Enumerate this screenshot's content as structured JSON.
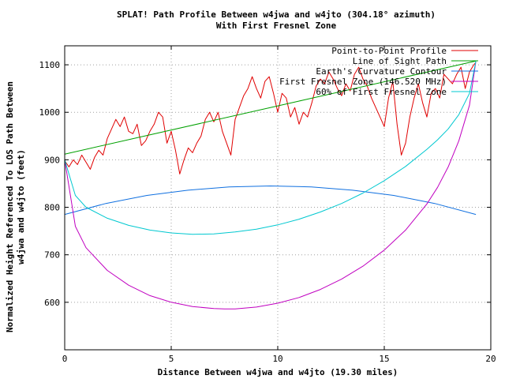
{
  "chart_data": {
    "type": "line",
    "title": "SPLAT! Path Profile Between w4jwa and w4jto (304.18° azimuth)",
    "subtitle": "With First Fresnel Zone",
    "xlabel": "Distance Between w4jwa and w4jto (19.30 miles)",
    "ylabel_line1": "Normalized Height Referenced To LOS Path Between",
    "ylabel_line2": "w4jwa and w4jto (feet)",
    "xlim": [
      0,
      20
    ],
    "ylim": [
      500,
      1140
    ],
    "xticks": [
      "0",
      "5",
      "10",
      "15",
      "20"
    ],
    "yticks": [
      "600",
      "700",
      "800",
      "900",
      "1000",
      "1100"
    ],
    "grid": true,
    "legend_position": "top-right",
    "path_length_miles": 19.3,
    "series": [
      {
        "name": "Point-to-Point Profile",
        "color": "#e00000",
        "x": [
          0,
          0.2,
          0.4,
          0.6,
          0.8,
          1.0,
          1.2,
          1.4,
          1.6,
          1.8,
          2.0,
          2.2,
          2.4,
          2.6,
          2.8,
          3.0,
          3.2,
          3.4,
          3.6,
          3.8,
          4.0,
          4.2,
          4.4,
          4.6,
          4.8,
          5.0,
          5.2,
          5.4,
          5.6,
          5.8,
          6.0,
          6.2,
          6.4,
          6.6,
          6.8,
          7.0,
          7.2,
          7.4,
          7.6,
          7.8,
          8.0,
          8.2,
          8.4,
          8.6,
          8.8,
          9.0,
          9.2,
          9.4,
          9.6,
          9.8,
          10.0,
          10.2,
          10.4,
          10.6,
          10.8,
          11.0,
          11.2,
          11.4,
          11.6,
          11.8,
          12.0,
          12.2,
          12.4,
          12.6,
          12.8,
          13.0,
          13.2,
          13.4,
          13.6,
          13.8,
          14.0,
          14.2,
          14.4,
          14.6,
          14.8,
          15.0,
          15.2,
          15.4,
          15.6,
          15.8,
          16.0,
          16.2,
          16.4,
          16.6,
          16.8,
          17.0,
          17.2,
          17.4,
          17.6,
          17.8,
          18.0,
          18.2,
          18.4,
          18.6,
          18.8,
          19.0,
          19.2,
          19.3
        ],
        "values": [
          898,
          885,
          900,
          890,
          910,
          895,
          880,
          905,
          920,
          910,
          945,
          965,
          985,
          970,
          990,
          960,
          955,
          975,
          930,
          940,
          960,
          975,
          1000,
          990,
          935,
          960,
          920,
          870,
          900,
          925,
          915,
          935,
          950,
          985,
          1000,
          980,
          1000,
          960,
          935,
          910,
          985,
          1010,
          1035,
          1050,
          1075,
          1050,
          1030,
          1065,
          1075,
          1040,
          1000,
          1040,
          1030,
          990,
          1010,
          975,
          1000,
          990,
          1020,
          1055,
          1070,
          1060,
          1085,
          1070,
          1050,
          1035,
          1060,
          1045,
          1080,
          1095,
          1070,
          1055,
          1030,
          1010,
          990,
          970,
          1030,
          1065,
          975,
          910,
          935,
          990,
          1030,
          1060,
          1020,
          990,
          1040,
          1050,
          1030,
          1080,
          1070,
          1060,
          1080,
          1095,
          1050,
          1085,
          1100,
          1105
        ]
      },
      {
        "name": "Line of Sight Path",
        "color": "#00a000",
        "x": [
          0,
          19.3
        ],
        "values": [
          912,
          1108
        ]
      },
      {
        "name": "Earth's Curvature Contour",
        "color": "#1070e0",
        "x": [
          0,
          1.93,
          3.86,
          5.79,
          7.72,
          9.65,
          11.58,
          13.51,
          15.44,
          17.37,
          19.3
        ],
        "values": [
          785,
          808,
          825,
          836,
          843,
          845,
          843,
          836,
          825,
          808,
          785
        ]
      },
      {
        "name": "First Fresnel Zone (146.520 MHz)",
        "color": "#c000c0",
        "x": [
          0,
          0.5,
          1.0,
          2.0,
          3.0,
          4.0,
          5.0,
          6.0,
          7.0,
          7.5,
          8.0,
          9.0,
          10.0,
          11.0,
          12.0,
          13.0,
          14.0,
          15.0,
          16.0,
          17.0,
          17.5,
          18.0,
          18.5,
          19.0,
          19.3
        ],
        "values": [
          900,
          760,
          715,
          667,
          636,
          614,
          600,
          591,
          587,
          586,
          586,
          590,
          598,
          610,
          627,
          649,
          676,
          710,
          752,
          807,
          842,
          885,
          940,
          1015,
          1108
        ]
      },
      {
        "name": "60% of First Fresnel Zone",
        "color": "#00c8d0",
        "x": [
          0,
          0.5,
          1.0,
          2.0,
          3.0,
          4.0,
          5.0,
          6.0,
          7.0,
          8.0,
          9.0,
          10.0,
          11.0,
          12.0,
          13.0,
          14.0,
          15.0,
          16.0,
          17.0,
          17.5,
          18.0,
          18.5,
          19.0,
          19.3
        ],
        "values": [
          900,
          825,
          800,
          777,
          762,
          752,
          746,
          743,
          744,
          748,
          754,
          763,
          775,
          790,
          808,
          830,
          856,
          886,
          922,
          942,
          965,
          995,
          1040,
          1108
        ]
      }
    ]
  }
}
